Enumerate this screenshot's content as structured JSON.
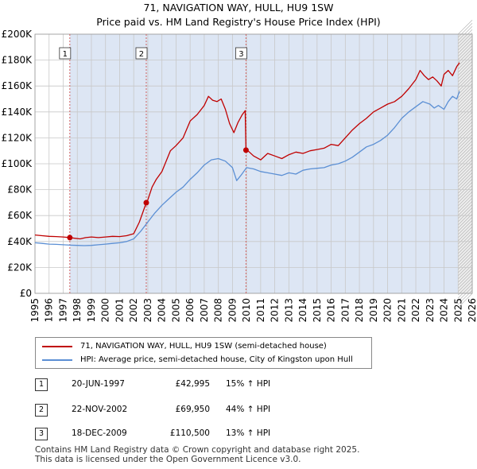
{
  "header": {
    "title": "71, NAVIGATION WAY, HULL, HU9 1SW",
    "subtitle": "Price paid vs. HM Land Registry's House Price Index (HPI)"
  },
  "colors": {
    "property": "#c00000",
    "hpi": "#5b8fd4",
    "shade": "#dde6f4",
    "grid": "#c8c8c8"
  },
  "chart_data": {
    "type": "line",
    "title": "71, NAVIGATION WAY, HULL, HU9 1SW",
    "subtitle": "Price paid vs. HM Land Registry's House Price Index (HPI)",
    "xlim": [
      1995,
      2026
    ],
    "ylim": [
      0,
      200000
    ],
    "x_ticks": [
      1995,
      1996,
      1997,
      1998,
      1999,
      2000,
      2001,
      2002,
      2003,
      2004,
      2005,
      2006,
      2007,
      2008,
      2009,
      2010,
      2011,
      2012,
      2013,
      2014,
      2015,
      2016,
      2017,
      2018,
      2019,
      2020,
      2021,
      2022,
      2023,
      2024,
      2025,
      2026
    ],
    "y_ticks": [
      {
        "value": 0,
        "label": "£0"
      },
      {
        "value": 20000,
        "label": "£20K"
      },
      {
        "value": 40000,
        "label": "£40K"
      },
      {
        "value": 60000,
        "label": "£60K"
      },
      {
        "value": 80000,
        "label": "£80K"
      },
      {
        "value": 100000,
        "label": "£100K"
      },
      {
        "value": 120000,
        "label": "£120K"
      },
      {
        "value": 140000,
        "label": "£140K"
      },
      {
        "value": 160000,
        "label": "£160K"
      },
      {
        "value": 180000,
        "label": "£180K"
      },
      {
        "value": 200000,
        "label": "£200K"
      }
    ],
    "grid": true,
    "series": [
      {
        "name": "71, NAVIGATION WAY, HULL, HU9 1SW (semi-detached house)",
        "color": "#c00000",
        "x": [
          1995.0,
          1995.5,
          1996.0,
          1996.5,
          1997.0,
          1997.47,
          1997.8,
          1998.2,
          1998.6,
          1999.0,
          1999.5,
          2000.0,
          2000.5,
          2001.0,
          2001.5,
          2002.0,
          2002.4,
          2002.89,
          2003.0,
          2003.3,
          2003.6,
          2004.0,
          2004.3,
          2004.6,
          2005.0,
          2005.5,
          2006.0,
          2006.5,
          2007.0,
          2007.3,
          2007.6,
          2007.9,
          2008.2,
          2008.5,
          2008.8,
          2009.1,
          2009.4,
          2009.7,
          2009.9,
          2009.96,
          2010.1,
          2010.5,
          2011.0,
          2011.5,
          2012.0,
          2012.5,
          2013.0,
          2013.5,
          2014.0,
          2014.5,
          2015.0,
          2015.5,
          2016.0,
          2016.5,
          2017.0,
          2017.5,
          2018.0,
          2018.5,
          2019.0,
          2019.5,
          2020.0,
          2020.5,
          2021.0,
          2021.5,
          2022.0,
          2022.3,
          2022.6,
          2022.9,
          2023.2,
          2023.5,
          2023.8,
          2024.0,
          2024.3,
          2024.6,
          2024.9,
          2025.1
        ],
        "values": [
          45000,
          44500,
          44000,
          43800,
          43500,
          42995,
          42500,
          42000,
          43000,
          43500,
          43000,
          43500,
          44000,
          43800,
          44500,
          46000,
          55000,
          69950,
          72000,
          82000,
          88000,
          94000,
          102000,
          110000,
          114000,
          120000,
          133000,
          138000,
          145000,
          152000,
          149000,
          148000,
          150000,
          142000,
          131000,
          124000,
          132000,
          138000,
          141000,
          110500,
          110000,
          106000,
          103000,
          108000,
          106000,
          104000,
          107000,
          109000,
          108000,
          110000,
          111000,
          112000,
          115000,
          114000,
          120000,
          126000,
          131000,
          135000,
          140000,
          143000,
          146000,
          148000,
          152000,
          158000,
          165000,
          172000,
          168000,
          165000,
          167000,
          164000,
          160000,
          169000,
          172000,
          168000,
          175000,
          178000
        ]
      },
      {
        "name": "HPI: Average price, semi-detached house, City of Kingston upon Hull",
        "color": "#5b8fd4",
        "x": [
          1995.0,
          1995.5,
          1996.0,
          1996.5,
          1997.0,
          1997.5,
          1998.0,
          1998.5,
          1999.0,
          1999.5,
          2000.0,
          2000.5,
          2001.0,
          2001.5,
          2002.0,
          2002.5,
          2003.0,
          2003.5,
          2004.0,
          2004.5,
          2005.0,
          2005.5,
          2006.0,
          2006.5,
          2007.0,
          2007.5,
          2008.0,
          2008.5,
          2009.0,
          2009.3,
          2009.6,
          2010.0,
          2010.5,
          2011.0,
          2011.5,
          2012.0,
          2012.5,
          2013.0,
          2013.5,
          2014.0,
          2014.5,
          2015.0,
          2015.5,
          2016.0,
          2016.5,
          2017.0,
          2017.5,
          2018.0,
          2018.5,
          2019.0,
          2019.5,
          2020.0,
          2020.5,
          2021.0,
          2021.5,
          2022.0,
          2022.5,
          2023.0,
          2023.3,
          2023.6,
          2024.0,
          2024.3,
          2024.6,
          2024.9,
          2025.1
        ],
        "values": [
          39000,
          38500,
          38000,
          37800,
          37500,
          37200,
          37000,
          36800,
          37000,
          37500,
          38000,
          38500,
          39000,
          40000,
          42000,
          48000,
          55000,
          62000,
          68000,
          73000,
          78000,
          82000,
          88000,
          93000,
          99000,
          103000,
          104000,
          102000,
          97000,
          87000,
          91000,
          97000,
          96000,
          94000,
          93000,
          92000,
          91000,
          93000,
          92000,
          95000,
          96000,
          96500,
          97000,
          99000,
          100000,
          102000,
          105000,
          109000,
          113000,
          115000,
          118000,
          122000,
          128000,
          135000,
          140000,
          144000,
          148000,
          146000,
          143000,
          145000,
          142000,
          148000,
          152000,
          150000,
          156000
        ]
      }
    ],
    "shaded_regions": [
      {
        "x_start": 2025.0,
        "x_end": 2026.0
      }
    ],
    "sales": [
      {
        "num": "1",
        "x": 1997.47,
        "value": 42995
      },
      {
        "num": "2",
        "x": 2002.89,
        "value": 69950
      },
      {
        "num": "3",
        "x": 2009.96,
        "value": 110500
      }
    ]
  },
  "legend": [
    {
      "label": "71, NAVIGATION WAY, HULL, HU9 1SW (semi-detached house)",
      "color": "#c00000"
    },
    {
      "label": "HPI: Average price, semi-detached house, City of Kingston upon Hull",
      "color": "#5b8fd4"
    }
  ],
  "sales_table": [
    {
      "num": "1",
      "date": "20-JUN-1997",
      "price": "£42,995",
      "hpi": "15% ↑ HPI"
    },
    {
      "num": "2",
      "date": "22-NOV-2002",
      "price": "£69,950",
      "hpi": "44% ↑ HPI"
    },
    {
      "num": "3",
      "date": "18-DEC-2009",
      "price": "£110,500",
      "hpi": "13% ↑ HPI"
    }
  ],
  "footer": {
    "line1": "Contains HM Land Registry data © Crown copyright and database right 2025.",
    "line2": "This data is licensed under the Open Government Licence v3.0."
  }
}
